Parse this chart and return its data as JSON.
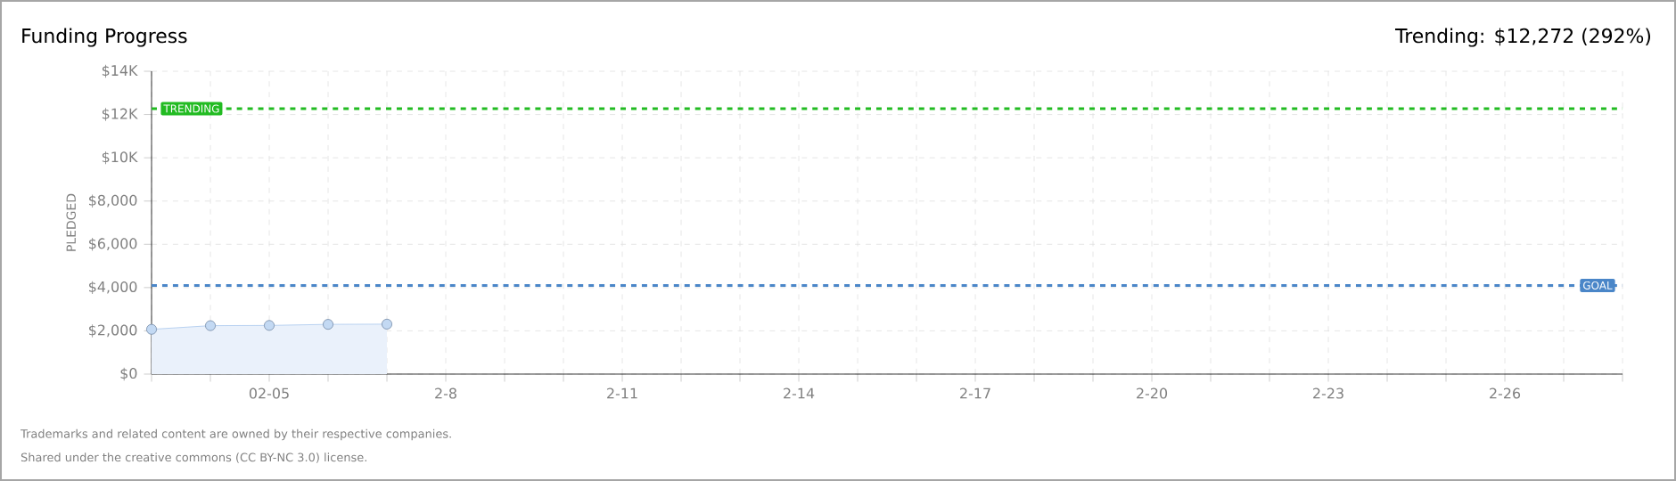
{
  "chart_data": {
    "type": "area",
    "title": "Funding Progress",
    "ylabel": "PLEDGED",
    "x": [
      "--02-03",
      "--02-04",
      "--02-05",
      "--02-06",
      "--02-07"
    ],
    "series": [
      {
        "color": "#a9c8ee",
        "values": [
          2070,
          2240,
          2250,
          2300,
          2310
        ]
      }
    ],
    "xlim": [
      "--02-03",
      "--02-28"
    ],
    "xticks": [
      {
        "value": "--02-03",
        "label": null
      },
      {
        "value": "--02-04",
        "label": null
      },
      {
        "value": "--02-05",
        "label": "02-05"
      },
      {
        "value": "--02-06",
        "label": null
      },
      {
        "value": "--02-07",
        "label": null
      },
      {
        "value": "--02-08",
        "label": "2-8"
      },
      {
        "value": "--02-09",
        "label": null
      },
      {
        "value": "--02-10",
        "label": null
      },
      {
        "value": "--02-11",
        "label": "2-11"
      },
      {
        "value": "--02-12",
        "label": null
      },
      {
        "value": "--02-13",
        "label": null
      },
      {
        "value": "--02-14",
        "label": "2-14"
      },
      {
        "value": "--02-15",
        "label": null
      },
      {
        "value": "--02-16",
        "label": null
      },
      {
        "value": "--02-17",
        "label": "2-17"
      },
      {
        "value": "--02-18",
        "label": null
      },
      {
        "value": "--02-19",
        "label": null
      },
      {
        "value": "--02-20",
        "label": "2-20"
      },
      {
        "value": "--02-21",
        "label": null
      },
      {
        "value": "--02-22",
        "label": null
      },
      {
        "value": "--02-23",
        "label": "2-23"
      },
      {
        "value": "--02-24",
        "label": null
      },
      {
        "value": "--02-25",
        "label": null
      },
      {
        "value": "--02-26",
        "label": "2-26"
      },
      {
        "value": "--02-27",
        "label": null
      },
      {
        "value": "--02-28",
        "label": null
      }
    ],
    "ylim": [
      0,
      14000
    ],
    "yticks": [
      {
        "value": 0,
        "label": "$0"
      },
      {
        "value": 2000,
        "label": "$2,000"
      },
      {
        "value": 4000,
        "label": "$4,000"
      },
      {
        "value": 6000,
        "label": "$6,000"
      },
      {
        "value": 8000,
        "label": "$8,000"
      },
      {
        "value": 10000,
        "label": "$10K"
      },
      {
        "value": 12000,
        "label": "$12K"
      },
      {
        "value": 14000,
        "label": "$14K"
      }
    ],
    "ref_lines": [
      {
        "axis": "y",
        "value": 12272,
        "label": "TRENDING",
        "color": "#22bb22",
        "line_style": "dashed"
      },
      {
        "axis": "y",
        "value": 4100,
        "label": "GOAL",
        "color": "#4a86c8",
        "line_style": "dashed"
      }
    ],
    "annotations": [
      "Trending: $12,272 (292%)",
      "Trademarks and related content are owned by their respective companies.",
      "Shared under the creative commons (CC BY-NC 3.0) license."
    ],
    "grid": true,
    "marker": "circle",
    "line_style": "solid"
  }
}
